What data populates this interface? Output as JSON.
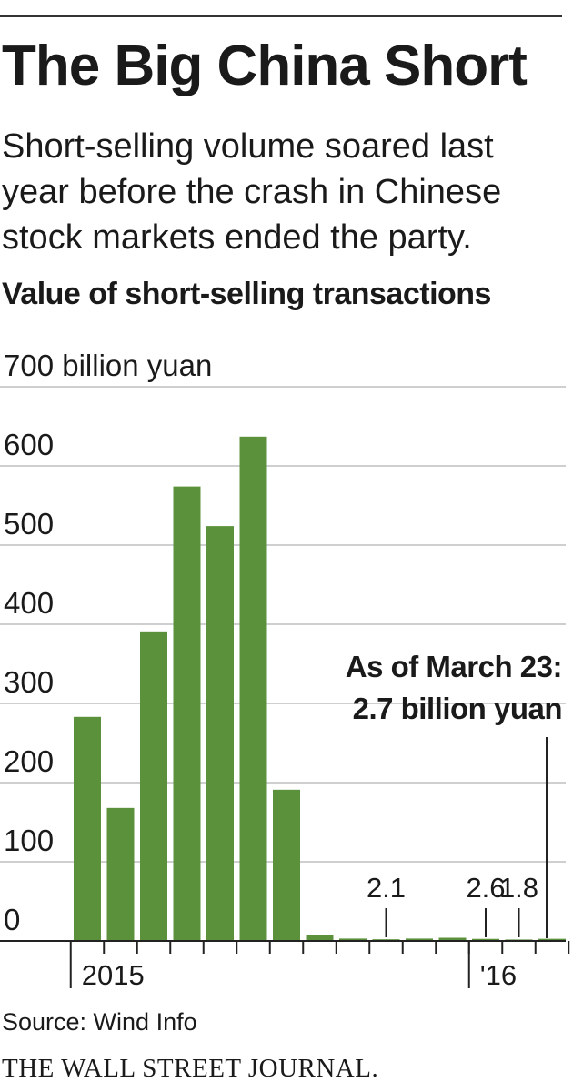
{
  "header": {
    "title": "The Big China Short",
    "subtitle": "Short-selling volume soared last year before the crash in Chinese stock markets ended the party.",
    "chart_heading": "Value of short-selling transactions"
  },
  "footer": {
    "source": "Source: Wind Info",
    "brand": "THE WALL STREET JOURNAL."
  },
  "colors": {
    "bar": "#5a913a",
    "grid": "#cfcfcf",
    "axis": "#222222",
    "text": "#1a1a1a"
  },
  "chart_data": {
    "type": "bar",
    "title": "Value of short-selling transactions",
    "ylabel": "700 billion yuan",
    "ylim": [
      0,
      700
    ],
    "yticks": [
      0,
      100,
      200,
      300,
      400,
      500,
      600,
      700
    ],
    "ytick_labels": [
      "0",
      "100",
      "200",
      "300",
      "400",
      "500",
      "600",
      "700 billion yuan"
    ],
    "grid": true,
    "x_labels": [
      {
        "label": "2015",
        "index": 0
      },
      {
        "label": "'16",
        "index": 12
      }
    ],
    "values": [
      283,
      168,
      391,
      574,
      524,
      637,
      191,
      8,
      3,
      2.1,
      3,
      4,
      2.6,
      1.8,
      2.7
    ],
    "labeled_points": [
      {
        "index": 9,
        "label": "2.1"
      },
      {
        "index": 12,
        "label": "2.6"
      },
      {
        "index": 13,
        "label": "1.8"
      }
    ],
    "annotation": {
      "index": 14,
      "lines": [
        "As of March 23:",
        "2.7 billion yuan"
      ]
    }
  }
}
